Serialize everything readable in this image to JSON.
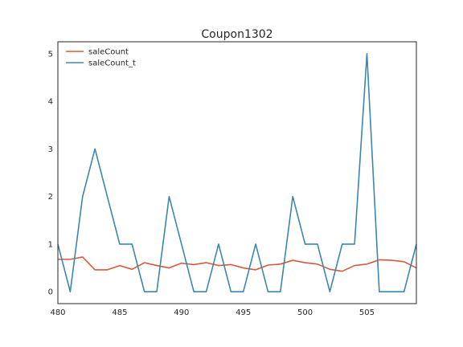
{
  "chart_data": {
    "type": "line",
    "title": "Coupon1302",
    "xlabel": "",
    "ylabel": "",
    "xlim": [
      480,
      509
    ],
    "ylim": [
      -0.25,
      5.25
    ],
    "xticks": [
      "480",
      "485",
      "490",
      "495",
      "500",
      "505"
    ],
    "yticks": [
      "0",
      "1",
      "2",
      "3",
      "4",
      "5"
    ],
    "grid": false,
    "legend_position": "top-left",
    "x": [
      480,
      481,
      482,
      483,
      484,
      485,
      486,
      487,
      488,
      489,
      490,
      491,
      492,
      493,
      494,
      495,
      496,
      497,
      498,
      499,
      500,
      501,
      502,
      503,
      504,
      505,
      506,
      507,
      508,
      509
    ],
    "series": [
      {
        "name": "saleCount",
        "color": "#d65a3c",
        "values": [
          0.68,
          0.68,
          0.73,
          0.46,
          0.46,
          0.55,
          0.47,
          0.61,
          0.55,
          0.5,
          0.6,
          0.57,
          0.61,
          0.55,
          0.57,
          0.5,
          0.46,
          0.56,
          0.58,
          0.66,
          0.61,
          0.58,
          0.47,
          0.43,
          0.55,
          0.58,
          0.67,
          0.66,
          0.63,
          0.5
        ]
      },
      {
        "name": "saleCount_t",
        "color": "#3a88ae",
        "values": [
          1,
          0,
          2,
          3,
          2,
          1,
          1,
          0,
          0,
          2,
          1,
          0,
          0,
          1,
          0,
          0,
          1,
          0,
          0,
          2,
          1,
          1,
          0,
          1,
          1,
          5,
          0,
          0,
          0,
          1
        ]
      }
    ]
  }
}
